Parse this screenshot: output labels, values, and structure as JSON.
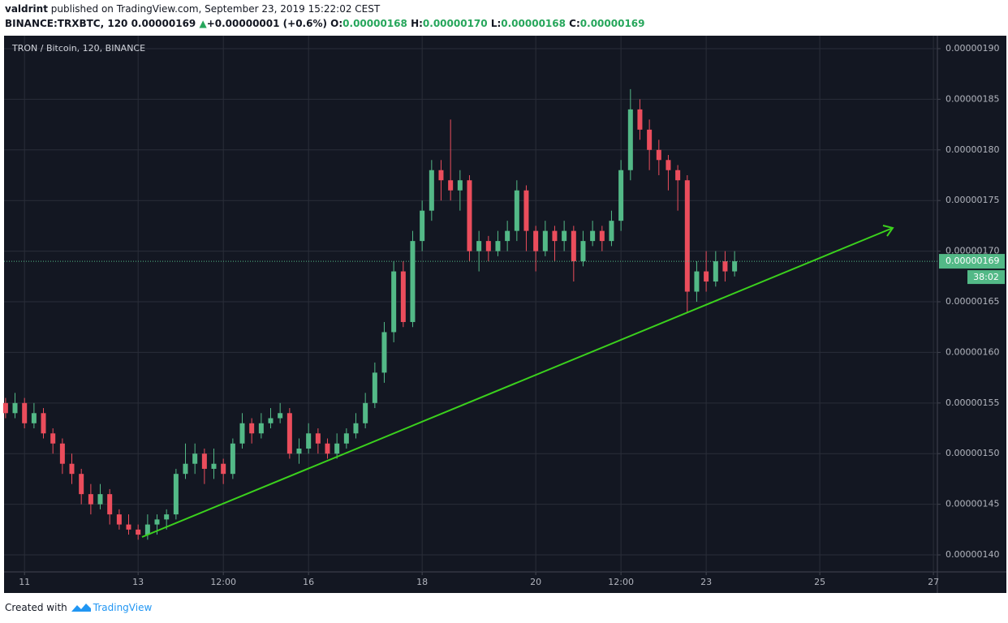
{
  "header": {
    "user": "valdrint",
    "published": "published on TradingView.com, September 23, 2019 15:22:02 CEST",
    "symbol": "BINANCE:TRXBTC, 120",
    "price": "0.00000169",
    "arrow": "▲",
    "change": "+0.00000001 (+0.6%)",
    "o_label": "O:",
    "o": "0.00000168",
    "h_label": "H:",
    "h": "0.00000170",
    "l_label": "L:",
    "l": "0.00000168",
    "c_label": "C:",
    "c": "0.00000169"
  },
  "footer": {
    "created": "Created with",
    "brand": "TradingView"
  },
  "chart_data": {
    "type": "candlestick",
    "title": "TRON / Bitcoin, 120, BINANCE",
    "up_color": "#53b987",
    "down_color": "#eb4d5c",
    "grid": true,
    "xlim": [
      10.64,
      27.07
    ],
    "xticks": [
      11,
      13,
      {
        "value": 14.5,
        "label": "12:00"
      },
      16,
      18,
      20,
      {
        "value": 21.5,
        "label": "12:00"
      },
      23,
      25,
      27
    ],
    "ylim": [
      1.3832e-06,
      1.9128e-06
    ],
    "yticks": [
      {
        "value": 1.4e-06,
        "label": "0.00000140"
      },
      {
        "value": 1.45e-06,
        "label": "0.00000145"
      },
      {
        "value": 1.5e-06,
        "label": "0.00000150"
      },
      {
        "value": 1.55e-06,
        "label": "0.00000155"
      },
      {
        "value": 1.6e-06,
        "label": "0.00000160"
      },
      {
        "value": 1.65e-06,
        "label": "0.00000165"
      },
      {
        "value": 1.7e-06,
        "label": "0.00000170"
      },
      {
        "value": 1.75e-06,
        "label": "0.00000175"
      },
      {
        "value": 1.8e-06,
        "label": "0.00000180"
      },
      {
        "value": 1.85e-06,
        "label": "0.00000185"
      },
      {
        "value": 1.9e-06,
        "label": "0.00000190"
      }
    ],
    "last_price": {
      "value": 1.69e-06,
      "label": "0.00000169"
    },
    "countdown": "38:02",
    "x": [
      10.667,
      10.833,
      11,
      11.167,
      11.333,
      11.5,
      11.667,
      11.833,
      12,
      12.167,
      12.333,
      12.5,
      12.667,
      12.833,
      13,
      13.167,
      13.333,
      13.5,
      13.667,
      13.833,
      14,
      14.167,
      14.333,
      14.5,
      14.667,
      14.833,
      15,
      15.167,
      15.333,
      15.5,
      15.667,
      15.833,
      16,
      16.167,
      16.333,
      16.5,
      16.667,
      16.833,
      17,
      17.167,
      17.333,
      17.5,
      17.667,
      17.833,
      18,
      18.167,
      18.333,
      18.5,
      18.667,
      18.833,
      19,
      19.167,
      19.333,
      19.5,
      19.667,
      19.833,
      20,
      20.167,
      20.333,
      20.5,
      20.667,
      20.833,
      21,
      21.167,
      21.333,
      21.5,
      21.667,
      21.833,
      22,
      22.167,
      22.333,
      22.5,
      22.667,
      22.833,
      23,
      23.167,
      23.333,
      23.5
    ],
    "open": [
      1.55e-06,
      1.54e-06,
      1.55e-06,
      1.53e-06,
      1.54e-06,
      1.52e-06,
      1.51e-06,
      1.49e-06,
      1.48e-06,
      1.46e-06,
      1.45e-06,
      1.46e-06,
      1.44e-06,
      1.43e-06,
      1.425e-06,
      1.42e-06,
      1.43e-06,
      1.435e-06,
      1.44e-06,
      1.48e-06,
      1.49e-06,
      1.5e-06,
      1.485e-06,
      1.49e-06,
      1.48e-06,
      1.51e-06,
      1.53e-06,
      1.52e-06,
      1.53e-06,
      1.535e-06,
      1.54e-06,
      1.5e-06,
      1.505e-06,
      1.52e-06,
      1.51e-06,
      1.5e-06,
      1.51e-06,
      1.52e-06,
      1.53e-06,
      1.55e-06,
      1.58e-06,
      1.62e-06,
      1.68e-06,
      1.63e-06,
      1.71e-06,
      1.74e-06,
      1.78e-06,
      1.77e-06,
      1.76e-06,
      1.77e-06,
      1.7e-06,
      1.71e-06,
      1.7e-06,
      1.71e-06,
      1.72e-06,
      1.76e-06,
      1.72e-06,
      1.7e-06,
      1.72e-06,
      1.71e-06,
      1.72e-06,
      1.69e-06,
      1.71e-06,
      1.72e-06,
      1.71e-06,
      1.73e-06,
      1.78e-06,
      1.84e-06,
      1.82e-06,
      1.8e-06,
      1.79e-06,
      1.78e-06,
      1.77e-06,
      1.66e-06,
      1.68e-06,
      1.67e-06,
      1.69e-06,
      1.68e-06
    ],
    "high": [
      1.555e-06,
      1.56e-06,
      1.555e-06,
      1.55e-06,
      1.545e-06,
      1.525e-06,
      1.515e-06,
      1.5e-06,
      1.485e-06,
      1.47e-06,
      1.47e-06,
      1.465e-06,
      1.445e-06,
      1.44e-06,
      1.43e-06,
      1.44e-06,
      1.44e-06,
      1.445e-06,
      1.485e-06,
      1.51e-06,
      1.51e-06,
      1.505e-06,
      1.505e-06,
      1.495e-06,
      1.515e-06,
      1.54e-06,
      1.535e-06,
      1.54e-06,
      1.545e-06,
      1.55e-06,
      1.545e-06,
      1.515e-06,
      1.53e-06,
      1.525e-06,
      1.515e-06,
      1.52e-06,
      1.525e-06,
      1.54e-06,
      1.56e-06,
      1.59e-06,
      1.63e-06,
      1.69e-06,
      1.69e-06,
      1.72e-06,
      1.75e-06,
      1.79e-06,
      1.79e-06,
      1.83e-06,
      1.78e-06,
      1.775e-06,
      1.72e-06,
      1.715e-06,
      1.72e-06,
      1.73e-06,
      1.77e-06,
      1.765e-06,
      1.725e-06,
      1.73e-06,
      1.725e-06,
      1.73e-06,
      1.725e-06,
      1.72e-06,
      1.73e-06,
      1.725e-06,
      1.74e-06,
      1.79e-06,
      1.86e-06,
      1.85e-06,
      1.83e-06,
      1.81e-06,
      1.795e-06,
      1.785e-06,
      1.775e-06,
      1.69e-06,
      1.7e-06,
      1.7e-06,
      1.7e-06,
      1.7e-06
    ],
    "low": [
      1.535e-06,
      1.535e-06,
      1.525e-06,
      1.525e-06,
      1.515e-06,
      1.5e-06,
      1.48e-06,
      1.47e-06,
      1.45e-06,
      1.44e-06,
      1.445e-06,
      1.43e-06,
      1.425e-06,
      1.42e-06,
      1.415e-06,
      1.415e-06,
      1.42e-06,
      1.425e-06,
      1.435e-06,
      1.475e-06,
      1.48e-06,
      1.47e-06,
      1.475e-06,
      1.47e-06,
      1.475e-06,
      1.505e-06,
      1.51e-06,
      1.515e-06,
      1.525e-06,
      1.53e-06,
      1.495e-06,
      1.49e-06,
      1.5e-06,
      1.5e-06,
      1.495e-06,
      1.495e-06,
      1.505e-06,
      1.515e-06,
      1.525e-06,
      1.545e-06,
      1.57e-06,
      1.61e-06,
      1.625e-06,
      1.625e-06,
      1.7e-06,
      1.73e-06,
      1.75e-06,
      1.75e-06,
      1.74e-06,
      1.69e-06,
      1.68e-06,
      1.69e-06,
      1.695e-06,
      1.7e-06,
      1.71e-06,
      1.7e-06,
      1.68e-06,
      1.695e-06,
      1.69e-06,
      1.7e-06,
      1.67e-06,
      1.685e-06,
      1.705e-06,
      1.7e-06,
      1.705e-06,
      1.72e-06,
      1.77e-06,
      1.81e-06,
      1.78e-06,
      1.775e-06,
      1.76e-06,
      1.74e-06,
      1.64e-06,
      1.65e-06,
      1.66e-06,
      1.665e-06,
      1.67e-06,
      1.675e-06
    ],
    "close": [
      1.54e-06,
      1.55e-06,
      1.53e-06,
      1.54e-06,
      1.52e-06,
      1.51e-06,
      1.49e-06,
      1.48e-06,
      1.46e-06,
      1.45e-06,
      1.46e-06,
      1.44e-06,
      1.43e-06,
      1.425e-06,
      1.42e-06,
      1.43e-06,
      1.435e-06,
      1.44e-06,
      1.48e-06,
      1.49e-06,
      1.5e-06,
      1.485e-06,
      1.49e-06,
      1.48e-06,
      1.51e-06,
      1.53e-06,
      1.52e-06,
      1.53e-06,
      1.535e-06,
      1.54e-06,
      1.5e-06,
      1.505e-06,
      1.52e-06,
      1.51e-06,
      1.5e-06,
      1.51e-06,
      1.52e-06,
      1.53e-06,
      1.55e-06,
      1.58e-06,
      1.62e-06,
      1.68e-06,
      1.63e-06,
      1.71e-06,
      1.74e-06,
      1.78e-06,
      1.77e-06,
      1.76e-06,
      1.77e-06,
      1.7e-06,
      1.71e-06,
      1.7e-06,
      1.71e-06,
      1.72e-06,
      1.76e-06,
      1.72e-06,
      1.7e-06,
      1.72e-06,
      1.71e-06,
      1.72e-06,
      1.69e-06,
      1.71e-06,
      1.72e-06,
      1.71e-06,
      1.73e-06,
      1.78e-06,
      1.84e-06,
      1.82e-06,
      1.8e-06,
      1.79e-06,
      1.78e-06,
      1.77e-06,
      1.66e-06,
      1.68e-06,
      1.67e-06,
      1.69e-06,
      1.68e-06,
      1.69e-06
    ]
  }
}
